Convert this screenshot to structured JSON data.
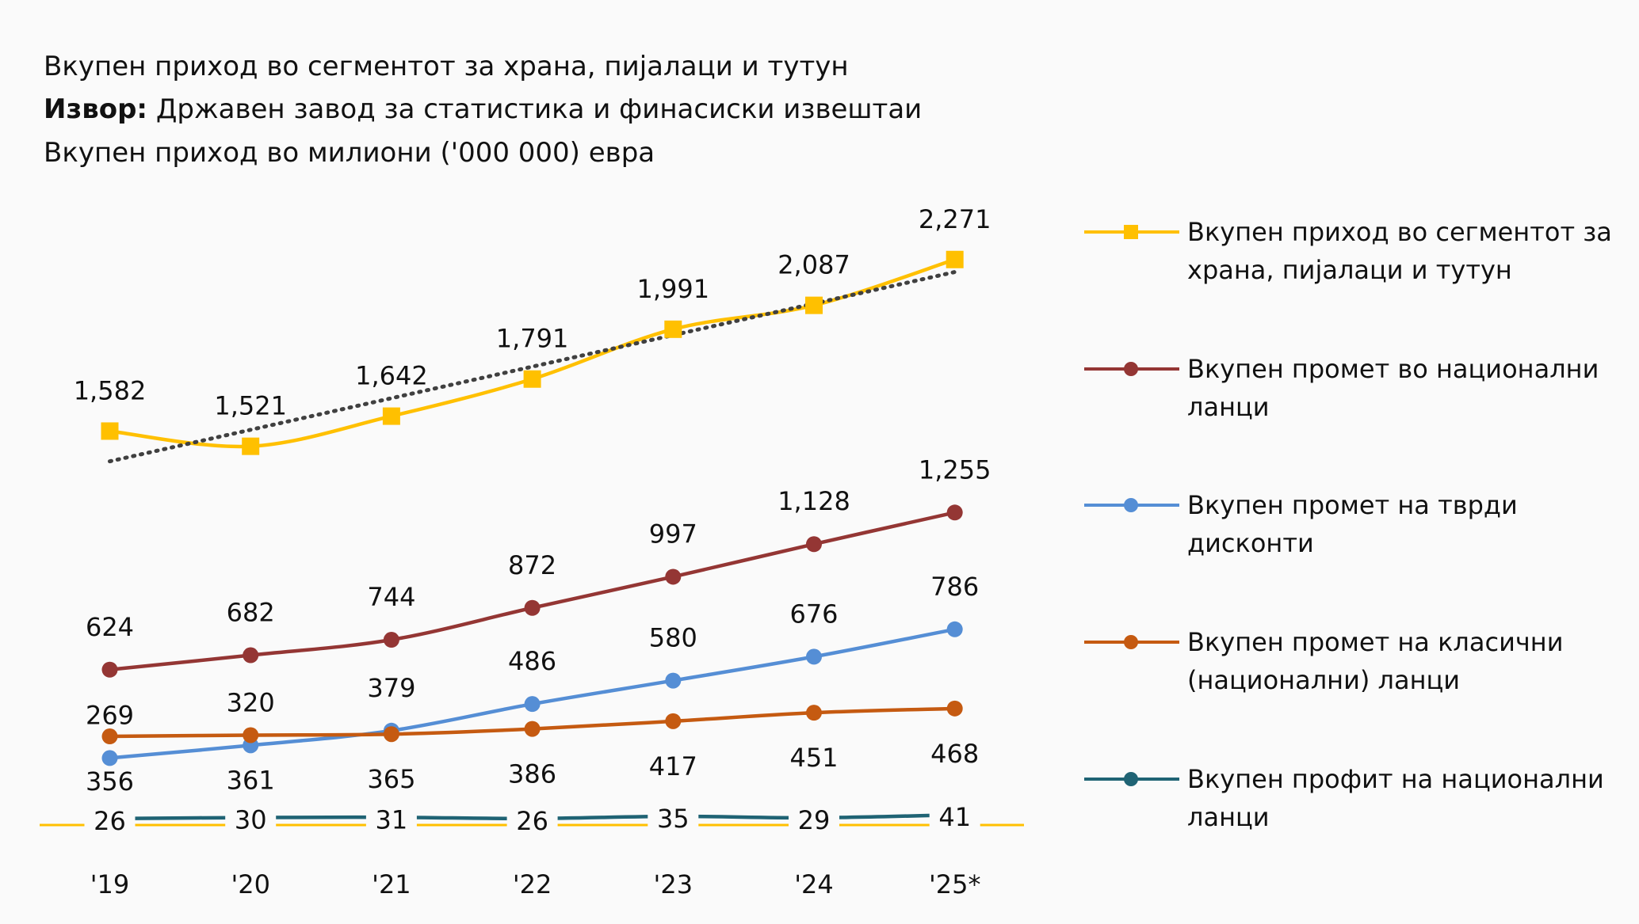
{
  "header": {
    "title": "Вкупен приход во сегментот за храна, пијалаци и тутун",
    "source_label": "Извор:",
    "source_text": " Државен завод за статистика и финасиски извештаи",
    "unit": "Вкупен приход во милиони ('000 000) евра"
  },
  "chart_data": {
    "type": "line",
    "title": "Вкупен приход во сегментот за храна, пијалаци и тутун",
    "subtitle": "Вкупен приход во милиони ('000 000) евра",
    "xlabel": "",
    "ylabel": "",
    "categories": [
      "'19",
      "'20",
      "'21",
      "'22",
      "'23",
      "'24",
      "'25*"
    ],
    "ylim": [
      0,
      2300
    ],
    "grid": false,
    "legend_position": "right",
    "series": [
      {
        "name": "Вкупен приход во сегментот за храна, пијалаци и тутун",
        "color": "#FFC000",
        "marker": "square",
        "smooth": true,
        "trendline": "linear",
        "label_pos": "above",
        "values": [
          1582,
          1521,
          1642,
          1791,
          1991,
          2087,
          2271
        ],
        "labels": [
          "1,582",
          "1,521",
          "1,642",
          "1,791",
          "1,991",
          "2,087",
          "2,271"
        ]
      },
      {
        "name": "Вкупен промет во национални ланци",
        "color": "#943634",
        "marker": "circle",
        "smooth": true,
        "label_pos": "above",
        "values": [
          624,
          682,
          744,
          872,
          997,
          1128,
          1255
        ],
        "labels": [
          "624",
          "682",
          "744",
          "872",
          "997",
          "1,128",
          "1,255"
        ]
      },
      {
        "name": "Вкупен промет на тврди дисконти",
        "color": "#558ED5",
        "marker": "circle",
        "smooth": true,
        "label_pos": "above",
        "values": [
          269,
          320,
          379,
          486,
          580,
          676,
          786
        ],
        "labels": [
          "269",
          "320",
          "379",
          "486",
          "580",
          "676",
          "786"
        ]
      },
      {
        "name": "Вкупен промет на класични (национални) ланци",
        "color": "#C55A11",
        "marker": "circle",
        "smooth": true,
        "label_pos": "below",
        "values": [
          356,
          361,
          365,
          386,
          417,
          451,
          468
        ],
        "labels": [
          "356",
          "361",
          "365",
          "386",
          "417",
          "451",
          "468"
        ]
      },
      {
        "name": "Вкупен профит на национални ланци",
        "color": "#1F6374",
        "marker": "circle",
        "smooth": true,
        "label_pos": "center",
        "values": [
          26,
          30,
          31,
          26,
          35,
          29,
          41
        ],
        "labels": [
          "26",
          "30",
          "31",
          "26",
          "35",
          "29",
          "41"
        ]
      }
    ],
    "trendline_color": "#404040",
    "axis_color": "#FFC000"
  }
}
